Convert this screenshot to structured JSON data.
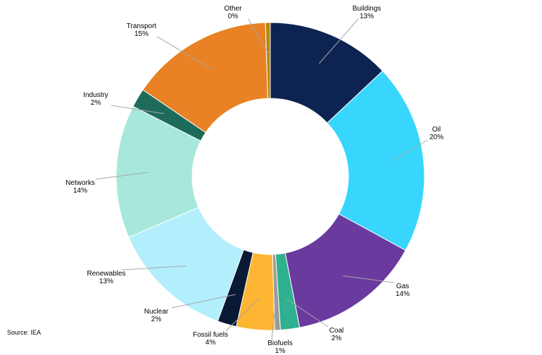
{
  "chart_data": {
    "type": "pie",
    "variant": "donut",
    "title": "",
    "slices": [
      {
        "label": "Buildings",
        "value": 13,
        "display": "13%",
        "color": "#0d2453"
      },
      {
        "label": "Oil",
        "value": 20,
        "display": "20%",
        "color": "#38d6fd"
      },
      {
        "label": "Gas",
        "value": 14,
        "display": "14%",
        "color": "#6a3a9f"
      },
      {
        "label": "Coal",
        "value": 2,
        "display": "2%",
        "color": "#2fb08e"
      },
      {
        "label": "Biofuels",
        "value": 0.6,
        "display": "1%",
        "color": "#9b9b9b"
      },
      {
        "label": "Fossil fuels",
        "value": 4,
        "display": "4%",
        "color": "#fdb533"
      },
      {
        "label": "Nuclear",
        "value": 2,
        "display": "2%",
        "color": "#0a1a35"
      },
      {
        "label": "Renewables",
        "value": 13,
        "display": "13%",
        "color": "#b3eefc"
      },
      {
        "label": "Networks",
        "value": 14,
        "display": "14%",
        "color": "#a7e8da"
      },
      {
        "label": "Industry",
        "value": 2,
        "display": "2%",
        "color": "#1f6b5a"
      },
      {
        "label": "Transport",
        "value": 15,
        "display": "15%",
        "color": "#e88224"
      },
      {
        "label": "Other",
        "value": 0.5,
        "display": "0%",
        "color": "#b8860b"
      }
    ]
  },
  "source": "Source: IEA"
}
